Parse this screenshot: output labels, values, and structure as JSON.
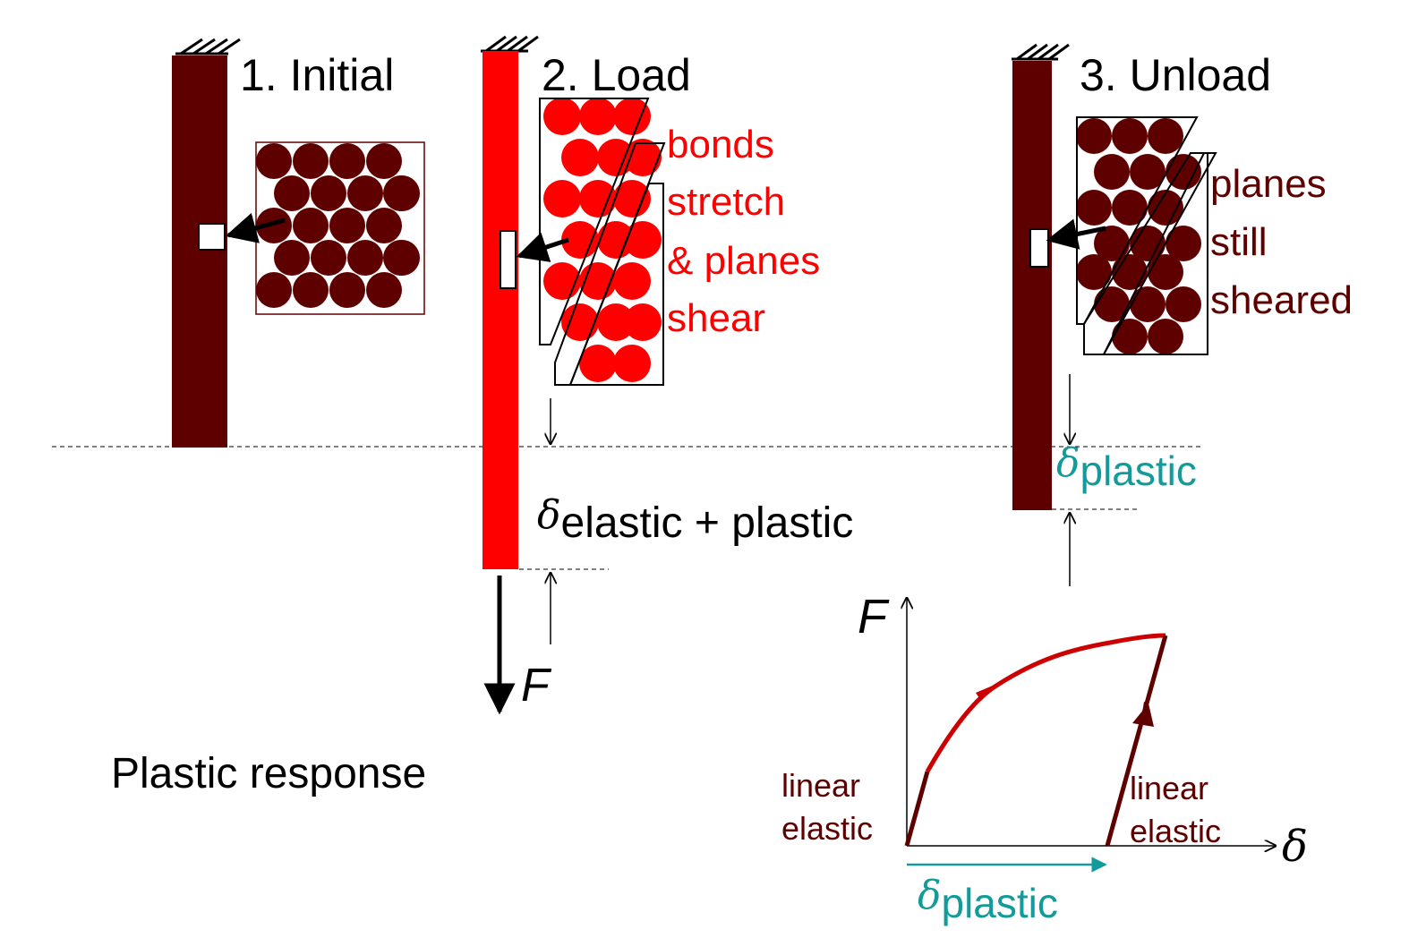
{
  "colors": {
    "dark_red": "#5e0000",
    "bright_red": "#ff0000",
    "graph_red": "#cc0000",
    "teal": "#139a9a",
    "black": "#000000"
  },
  "stages": {
    "initial": {
      "title": "1. Initial"
    },
    "load": {
      "title": "2. Load",
      "caption": [
        "bonds",
        "stretch",
        "& planes",
        "shear"
      ],
      "delta_symbol": "δ",
      "delta_sub": "elastic + plastic",
      "force_label": "F"
    },
    "unload": {
      "title": "3. Unload",
      "caption": [
        "planes",
        "still",
        "sheared"
      ],
      "delta_symbol": "δ",
      "delta_sub": "plastic"
    }
  },
  "footer": {
    "text": "Plastic response"
  },
  "graph": {
    "y_axis_label": "F",
    "x_axis_label": "δ",
    "left_label": [
      "linear",
      "elastic"
    ],
    "right_label": [
      "linear",
      "elastic"
    ],
    "offset_symbol": "δ",
    "offset_sub": "plastic"
  }
}
